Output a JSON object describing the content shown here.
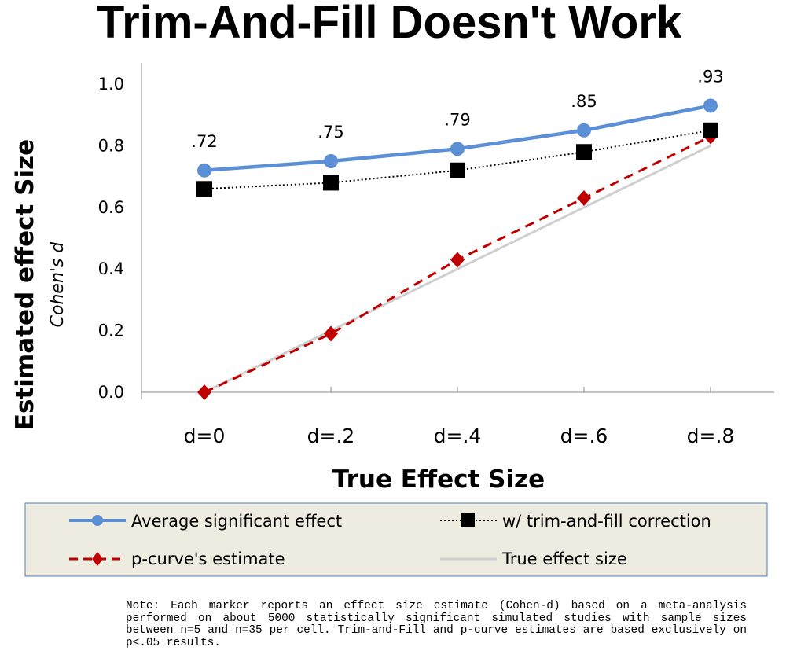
{
  "chart_data": {
    "type": "line",
    "title": "Trim-And-Fill Doesn't Work",
    "xlabel": "True Effect Size",
    "ylabel": "Estimated effect Size",
    "ylabel_sub": "Cohen's d",
    "categories": [
      "d=0",
      "d=.2",
      "d=.4",
      "d=.6",
      "d=.8"
    ],
    "ylim": [
      0,
      1.0
    ],
    "yticks": [
      "0.0",
      "0.2",
      "0.4",
      "0.6",
      "0.8",
      "1.0"
    ],
    "grid": false,
    "legend_position": "bottom",
    "series": [
      {
        "name": "Average significant effect",
        "values": [
          0.72,
          0.75,
          0.79,
          0.85,
          0.93
        ],
        "labels": [
          ".72",
          ".75",
          ".79",
          ".85",
          ".93"
        ],
        "color": "#5b8fd6",
        "style": "solid",
        "marker": "circle"
      },
      {
        "name": "w/ trim-and-fill correction",
        "values": [
          0.66,
          0.68,
          0.72,
          0.78,
          0.85
        ],
        "color": "#000000",
        "style": "dotted",
        "marker": "square"
      },
      {
        "name": "p-curve's estimate",
        "values": [
          0.0,
          0.19,
          0.43,
          0.63,
          0.83
        ],
        "color": "#c00000",
        "style": "dashed",
        "marker": "diamond"
      },
      {
        "name": "True effect size",
        "values": [
          0.0,
          0.2,
          0.4,
          0.6,
          0.8
        ],
        "color": "#cfcfcf",
        "style": "solid",
        "marker": "none"
      }
    ]
  },
  "note": "Note: Each marker reports an effect size estimate (Cohen-d) based on a meta-analysis performed on about 5000 statistically significant simulated studies with sample sizes between n=5 and n=35 per cell. Trim-and-Fill and p-curve estimates are based exclusively on p<.05 results.",
  "colors": {
    "legend_bg": "#eeebe0",
    "legend_border": "#4f7fbd"
  }
}
